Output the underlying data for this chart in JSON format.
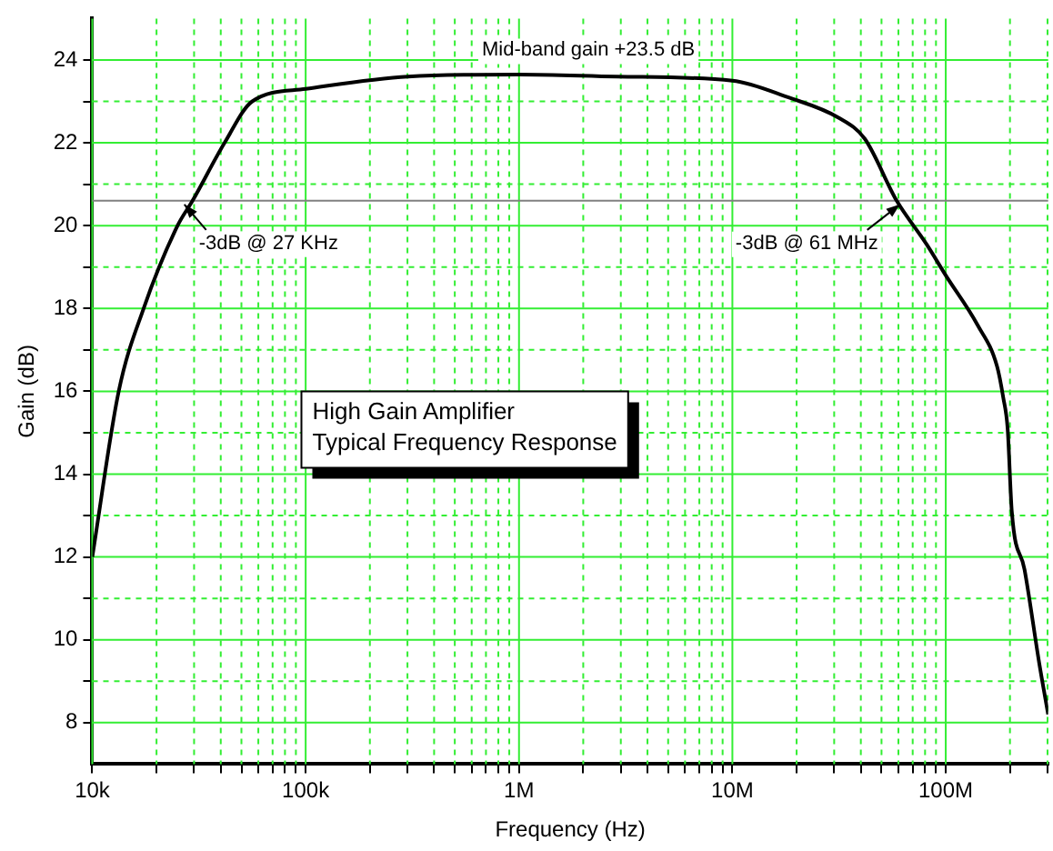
{
  "chart_data": {
    "type": "line",
    "xlabel": "Frequency (Hz)",
    "ylabel": "Gain (dB)",
    "annotations": [
      "Mid-band gain +23.5 dB",
      {
        "text": "-3dB @ 27 KHz",
        "x": 27000,
        "y": 20.6
      },
      {
        "text": "-3dB @ 61 MHz",
        "x": 61000000,
        "y": 20.6
      },
      "High Gain Amplifier\nTypical Frequency Response"
    ],
    "x": [
      10000,
      13300,
      17400,
      25100,
      29500,
      41700,
      56200,
      100000,
      302000,
      1000000,
      2880000,
      10000000,
      18200000,
      31600000,
      41700000,
      58900000,
      81300000,
      100000000,
      141000000,
      174000000,
      186000000,
      195000000,
      204000000,
      234000000,
      275000000,
      302000000
    ],
    "series": [
      {
        "color": "#000000",
        "values": [
          12,
          16,
          18,
          20,
          20.6,
          22,
          23,
          23.3,
          23.6,
          23.65,
          23.6,
          23.5,
          23.1,
          22.6,
          22.1,
          20.6,
          19.55,
          18.8,
          17.6,
          16.6,
          15.85,
          15.1,
          13.1,
          11.7,
          9.4,
          8.2
        ]
      }
    ],
    "log": "x",
    "xlim": [
      10000,
      302000000
    ],
    "ylim": [
      7,
      25
    ],
    "xticks": [
      {
        "value": 10000,
        "label": "10k"
      },
      {
        "value": 20000,
        "label": null
      },
      {
        "value": 30000,
        "label": null
      },
      {
        "value": 40000,
        "label": null
      },
      {
        "value": 50000,
        "label": null
      },
      {
        "value": 60000,
        "label": null
      },
      {
        "value": 70000,
        "label": null
      },
      {
        "value": 80000,
        "label": null
      },
      {
        "value": 90000,
        "label": null
      },
      {
        "value": 100000,
        "label": "100k"
      },
      {
        "value": 200000,
        "label": null
      },
      {
        "value": 300000,
        "label": null
      },
      {
        "value": 400000,
        "label": null
      },
      {
        "value": 500000,
        "label": null
      },
      {
        "value": 600000,
        "label": null
      },
      {
        "value": 700000,
        "label": null
      },
      {
        "value": 800000,
        "label": null
      },
      {
        "value": 900000,
        "label": null
      },
      {
        "value": 1000000,
        "label": "1M"
      },
      {
        "value": 2000000,
        "label": null
      },
      {
        "value": 3000000,
        "label": null
      },
      {
        "value": 4000000,
        "label": null
      },
      {
        "value": 5000000,
        "label": null
      },
      {
        "value": 6000000,
        "label": null
      },
      {
        "value": 7000000,
        "label": null
      },
      {
        "value": 8000000,
        "label": null
      },
      {
        "value": 9000000,
        "label": null
      },
      {
        "value": 10000000,
        "label": "10M"
      },
      {
        "value": 20000000,
        "label": null
      },
      {
        "value": 30000000,
        "label": null
      },
      {
        "value": 40000000,
        "label": null
      },
      {
        "value": 50000000,
        "label": null
      },
      {
        "value": 60000000,
        "label": null
      },
      {
        "value": 70000000,
        "label": null
      },
      {
        "value": 80000000,
        "label": null
      },
      {
        "value": 90000000,
        "label": null
      },
      {
        "value": 100000000,
        "label": "100M"
      },
      {
        "value": 200000000,
        "label": null
      },
      {
        "value": 300000000,
        "label": null
      }
    ],
    "yticks": [
      8,
      {
        "value": 9,
        "label": null
      },
      10,
      {
        "value": 11,
        "label": null
      },
      12,
      {
        "value": 13,
        "label": null
      },
      14,
      {
        "value": 15,
        "label": null
      },
      16,
      {
        "value": 17,
        "label": null
      },
      18,
      {
        "value": 19,
        "label": null
      },
      20,
      {
        "value": 21,
        "label": null
      },
      22,
      {
        "value": 23,
        "label": null
      },
      24
    ],
    "ref_lines": [
      {
        "axis": "y",
        "value": 20.6,
        "color": "#808080"
      }
    ],
    "grid": true,
    "legend": false,
    "marker": "none",
    "line_style": "solid"
  }
}
